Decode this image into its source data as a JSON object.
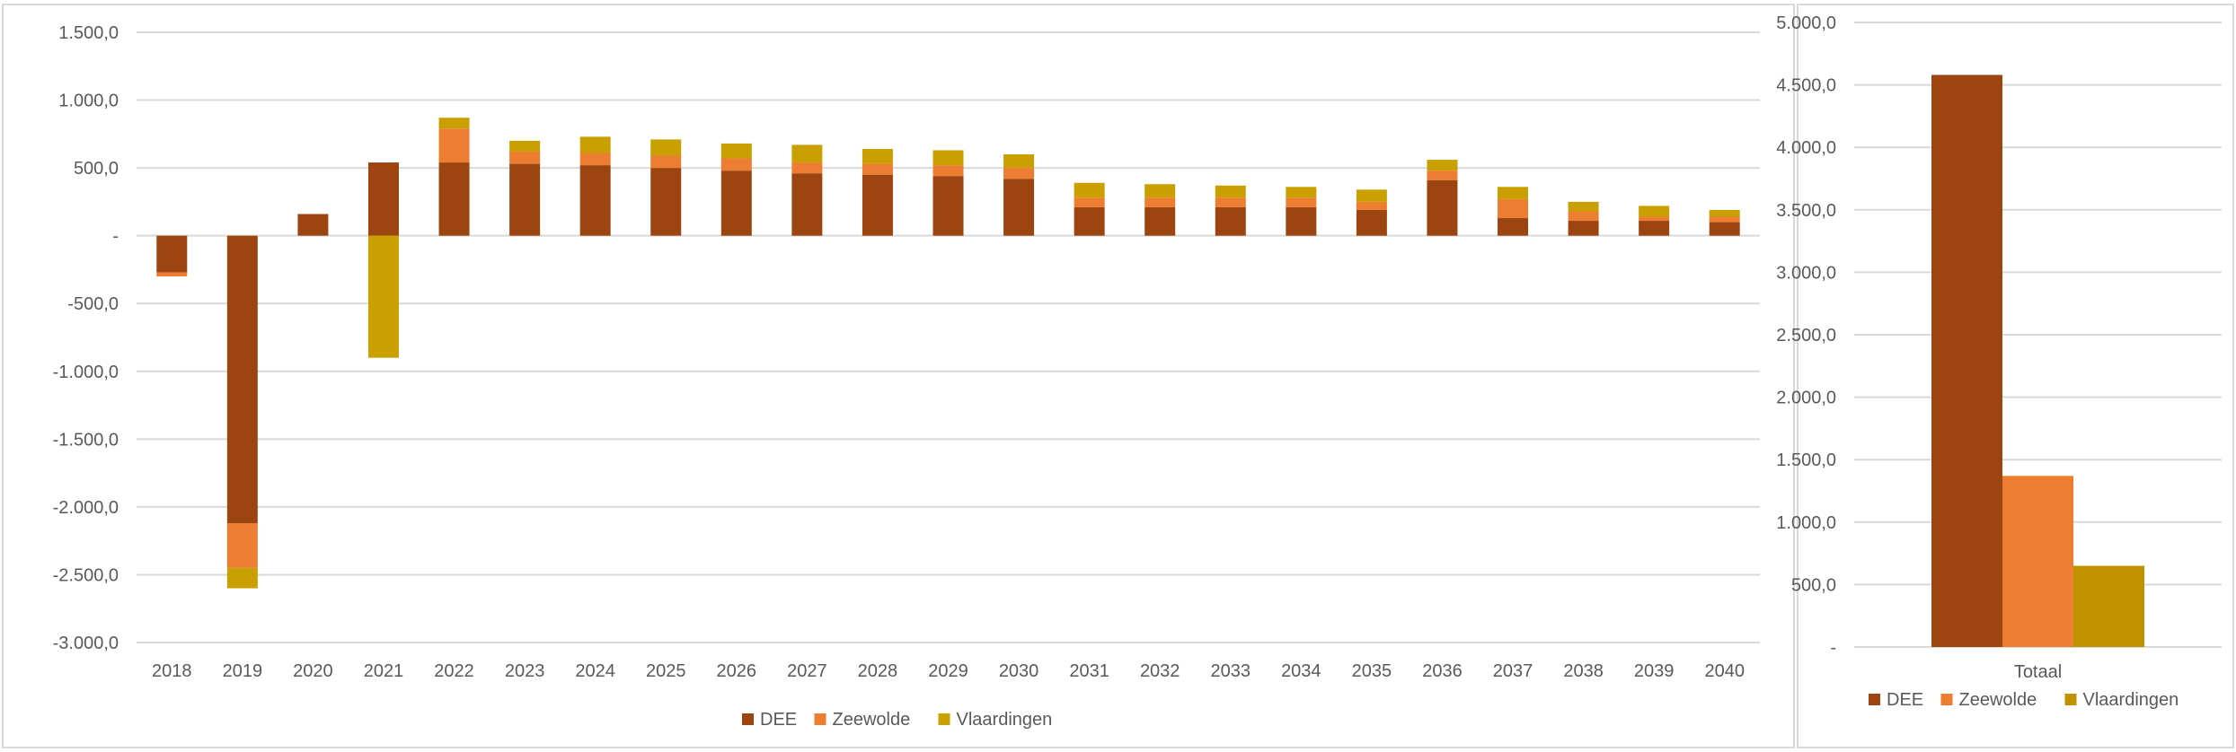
{
  "chart_data": [
    {
      "type": "bar",
      "stacked": true,
      "categories": [
        "2018",
        "2019",
        "2020",
        "2021",
        "2022",
        "2023",
        "2024",
        "2025",
        "2026",
        "2027",
        "2028",
        "2029",
        "2030",
        "2031",
        "2032",
        "2033",
        "2034",
        "2035",
        "2036",
        "2037",
        "2038",
        "2039",
        "2040"
      ],
      "series": [
        {
          "name": "DEE",
          "color": "#9c4510",
          "values": [
            -270,
            -2120,
            160,
            540,
            540,
            530,
            520,
            500,
            480,
            460,
            450,
            440,
            420,
            210,
            210,
            210,
            210,
            190,
            410,
            130,
            110,
            110,
            100
          ]
        },
        {
          "name": "Zeewolde",
          "color": "#ed7d31",
          "values": [
            -30,
            -330,
            0,
            0,
            250,
            90,
            90,
            90,
            90,
            80,
            80,
            80,
            80,
            70,
            70,
            70,
            70,
            60,
            70,
            140,
            70,
            30,
            40
          ]
        },
        {
          "name": "Vlaardingen",
          "color": "#c9a000",
          "values": [
            0,
            -150,
            0,
            -900,
            80,
            80,
            120,
            120,
            110,
            130,
            110,
            110,
            100,
            110,
            100,
            90,
            80,
            90,
            80,
            90,
            70,
            80,
            50
          ]
        }
      ],
      "y_ticks": [
        "1.500,0",
        "1.000,0",
        "500,0",
        "-",
        "-500,0",
        "-1.000,0",
        "-1.500,0",
        "-2.000,0",
        "-2.500,0",
        "-3.000,0"
      ],
      "ylim": [
        -3000,
        1500
      ],
      "grid": true,
      "legend_position": "bottom"
    },
    {
      "type": "bar",
      "categories": [
        "Totaal"
      ],
      "series": [
        {
          "name": "DEE",
          "color": "#9c4510",
          "values": [
            4580
          ]
        },
        {
          "name": "Zeewolde",
          "color": "#ed7d31",
          "values": [
            1370
          ]
        },
        {
          "name": "Vlaardingen",
          "color": "#c09200",
          "values": [
            650
          ]
        }
      ],
      "y_ticks": [
        "5.000,0",
        "4.500,0",
        "4.000,0",
        "3.500,0",
        "3.000,0",
        "2.500,0",
        "2.000,0",
        "1.500,0",
        "1.000,0",
        "500,0",
        "-"
      ],
      "ylim": [
        0,
        5000
      ],
      "grid": true,
      "legend_position": "bottom"
    }
  ]
}
